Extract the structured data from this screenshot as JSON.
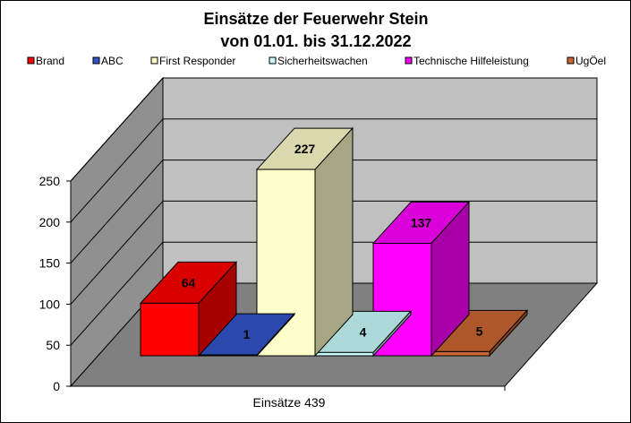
{
  "chart_data": {
    "type": "bar",
    "title": "Einsätze der Feuerwehr Stein",
    "subtitle": "von 01.01. bis 31.12.2022",
    "category_label": "Einsätze 439",
    "ylim": [
      0,
      250
    ],
    "yticks": [
      "0",
      "50",
      "100",
      "150",
      "200",
      "250"
    ],
    "grid": true,
    "legend_position": "top",
    "series": [
      {
        "name": "Brand",
        "value": 64,
        "label": "64",
        "color": "#ff0000"
      },
      {
        "name": "ABC",
        "value": 1,
        "label": "1",
        "color": "#3355cc"
      },
      {
        "name": "First Responder",
        "value": 227,
        "label": "227",
        "color": "#ffffcc"
      },
      {
        "name": "Sicherheitswachen",
        "value": 4,
        "label": "4",
        "color": "#ccffff"
      },
      {
        "name": "Technische Hilfeleistung",
        "value": 137,
        "label": "137",
        "color": "#ff00ff"
      },
      {
        "name": "UgÖel",
        "value": 5,
        "label": "5",
        "color": "#cc6633"
      }
    ],
    "wall_color": "#c0c0c0",
    "floor_color": "#808080"
  }
}
